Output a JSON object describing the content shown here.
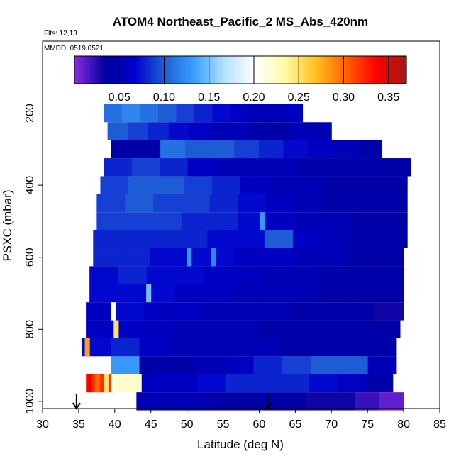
{
  "chart_data": {
    "type": "heatmap",
    "title": "ATOM4 Northeast_Pacific_2 MS_Abs_420nm",
    "flights_label": "Flts: 12,13",
    "date_label": "MMDD: 0519,0521",
    "xlabel": "Latitude (deg N)",
    "ylabel": "PSXC (mbar)",
    "xlim": [
      30,
      85
    ],
    "ylim": [
      1020,
      0
    ],
    "x_ticks": [
      30,
      35,
      40,
      45,
      50,
      55,
      60,
      65,
      70,
      75,
      80,
      85
    ],
    "y_ticks": [
      200,
      400,
      600,
      800,
      1000
    ],
    "colorbar": {
      "min": 0.0,
      "max": 0.37,
      "ticks": [
        0.05,
        0.1,
        0.15,
        0.2,
        0.25,
        0.3,
        0.35
      ],
      "tick_labels": [
        "0.05",
        "0.10",
        "0.15",
        "0.20",
        "0.25",
        "0.30",
        "0.35"
      ],
      "colors": [
        "#8a2be2",
        "#0000a0",
        "#0000cd",
        "#1f5fd6",
        "#3aa2ff",
        "#b8e4ff",
        "#ffffff",
        "#fffaa0",
        "#ffc020",
        "#ff6000",
        "#ff0000",
        "#a01818"
      ]
    },
    "arrows_lat": [
      34.7,
      61.2
    ],
    "layers": [
      {
        "p": 200,
        "lat_min": 38.5,
        "lat_max": 66.0,
        "values": [
          0.11,
          0.12,
          0.11,
          0.1,
          0.09,
          0.08,
          0.07,
          0.06,
          0.05,
          0.05,
          0.06
        ]
      },
      {
        "p": 250,
        "lat_min": 39.0,
        "lat_max": 70.0,
        "values": [
          0.1,
          0.09,
          0.08,
          0.07,
          0.06,
          0.05,
          0.05,
          0.04,
          0.04,
          0.05,
          0.05
        ]
      },
      {
        "p": 300,
        "lat_min": 39.5,
        "lat_max": 77.0,
        "values": [
          0.04,
          0.04,
          0.11,
          0.1,
          0.1,
          0.09,
          0.08,
          0.07,
          0.06,
          0.05,
          0.04
        ]
      },
      {
        "p": 350,
        "lat_min": 38.5,
        "lat_max": 81.0,
        "values": [
          0.08,
          0.09,
          0.08,
          0.06,
          0.05,
          0.05,
          0.05,
          0.04,
          0.04,
          0.04,
          0.04
        ]
      },
      {
        "p": 400,
        "lat_min": 38.0,
        "lat_max": 80.5,
        "values": [
          0.09,
          0.1,
          0.1,
          0.09,
          0.08,
          0.06,
          0.05,
          0.05,
          0.04,
          0.04,
          0.04
        ]
      },
      {
        "p": 450,
        "lat_min": 37.5,
        "lat_max": 80.5,
        "values": [
          0.09,
          0.1,
          0.09,
          0.09,
          0.08,
          0.07,
          0.06,
          0.05,
          0.04,
          0.04,
          0.04
        ]
      },
      {
        "p": 500,
        "lat_min": 37.5,
        "lat_max": 80.5,
        "values": [
          0.09,
          0.09,
          0.09,
          0.08,
          0.08,
          0.07,
          0.06,
          0.05,
          0.05,
          0.04,
          0.04
        ]
      },
      {
        "p": 550,
        "lat_min": 37.0,
        "lat_max": 80.5,
        "values": [
          0.08,
          0.08,
          0.08,
          0.08,
          0.07,
          0.07,
          0.1,
          0.06,
          0.05,
          0.04,
          0.04
        ]
      },
      {
        "p": 600,
        "lat_min": 37.0,
        "lat_max": 80.0,
        "values": [
          0.08,
          0.08,
          0.07,
          0.07,
          0.07,
          0.06,
          0.06,
          0.05,
          0.05,
          0.04,
          0.04
        ]
      },
      {
        "p": 650,
        "lat_min": 36.5,
        "lat_max": 80.0,
        "values": [
          0.07,
          0.08,
          0.07,
          0.07,
          0.06,
          0.06,
          0.05,
          0.05,
          0.04,
          0.04,
          0.04
        ]
      },
      {
        "p": 700,
        "lat_min": 36.5,
        "lat_max": 80.0,
        "values": [
          0.07,
          0.07,
          0.07,
          0.06,
          0.06,
          0.05,
          0.05,
          0.05,
          0.04,
          0.04,
          0.04
        ]
      },
      {
        "p": 750,
        "lat_min": 36.0,
        "lat_max": 80.0,
        "values": [
          0.06,
          0.07,
          0.06,
          0.06,
          0.05,
          0.05,
          0.05,
          0.04,
          0.04,
          0.04,
          0.03
        ]
      },
      {
        "p": 800,
        "lat_min": 36.0,
        "lat_max": 79.5,
        "values": [
          0.06,
          0.06,
          0.06,
          0.05,
          0.05,
          0.05,
          0.04,
          0.04,
          0.04,
          0.04,
          0.04
        ]
      },
      {
        "p": 850,
        "lat_min": 35.5,
        "lat_max": 79.0,
        "values": [
          0.07,
          0.08,
          0.06,
          0.05,
          0.05,
          0.05,
          0.05,
          0.04,
          0.04,
          0.04,
          0.04
        ]
      },
      {
        "p": 900,
        "lat_min": 35.5,
        "lat_max": 79.0,
        "values": [
          0.2,
          0.13,
          0.04,
          0.04,
          0.05,
          0.06,
          0.08,
          0.09,
          0.1,
          0.1,
          0.05
        ]
      },
      {
        "p": 950,
        "lat_min": 36.0,
        "lat_max": 78.5,
        "values": [
          0.32,
          0.22,
          0.06,
          0.06,
          0.07,
          0.08,
          0.08,
          0.08,
          0.07,
          0.06,
          0.04
        ]
      },
      {
        "p": 1000,
        "lat_min": 43.0,
        "lat_max": 80.0,
        "values": [
          0.05,
          0.05,
          0.05,
          0.04,
          0.04,
          0.04,
          0.04,
          0.03,
          0.03,
          0.02,
          0.01
        ]
      }
    ],
    "highlights": [
      {
        "p": 500,
        "lat": 60.5,
        "value": 0.13
      },
      {
        "p": 600,
        "lat": 50.3,
        "value": 0.13
      },
      {
        "p": 600,
        "lat": 53.7,
        "value": 0.12
      },
      {
        "p": 700,
        "lat": 44.7,
        "value": 0.15
      },
      {
        "p": 750,
        "lat": 39.8,
        "value": 0.2
      },
      {
        "p": 800,
        "lat": 40.2,
        "value": 0.25
      },
      {
        "p": 850,
        "lat": 36.2,
        "value": 0.28
      },
      {
        "p": 950,
        "lat": 36.5,
        "value": 0.34
      },
      {
        "p": 950,
        "lat": 37.6,
        "value": 0.3
      },
      {
        "p": 950,
        "lat": 38.8,
        "value": 0.25
      },
      {
        "p": 950,
        "lat": 39.8,
        "value": 0.21
      }
    ]
  }
}
